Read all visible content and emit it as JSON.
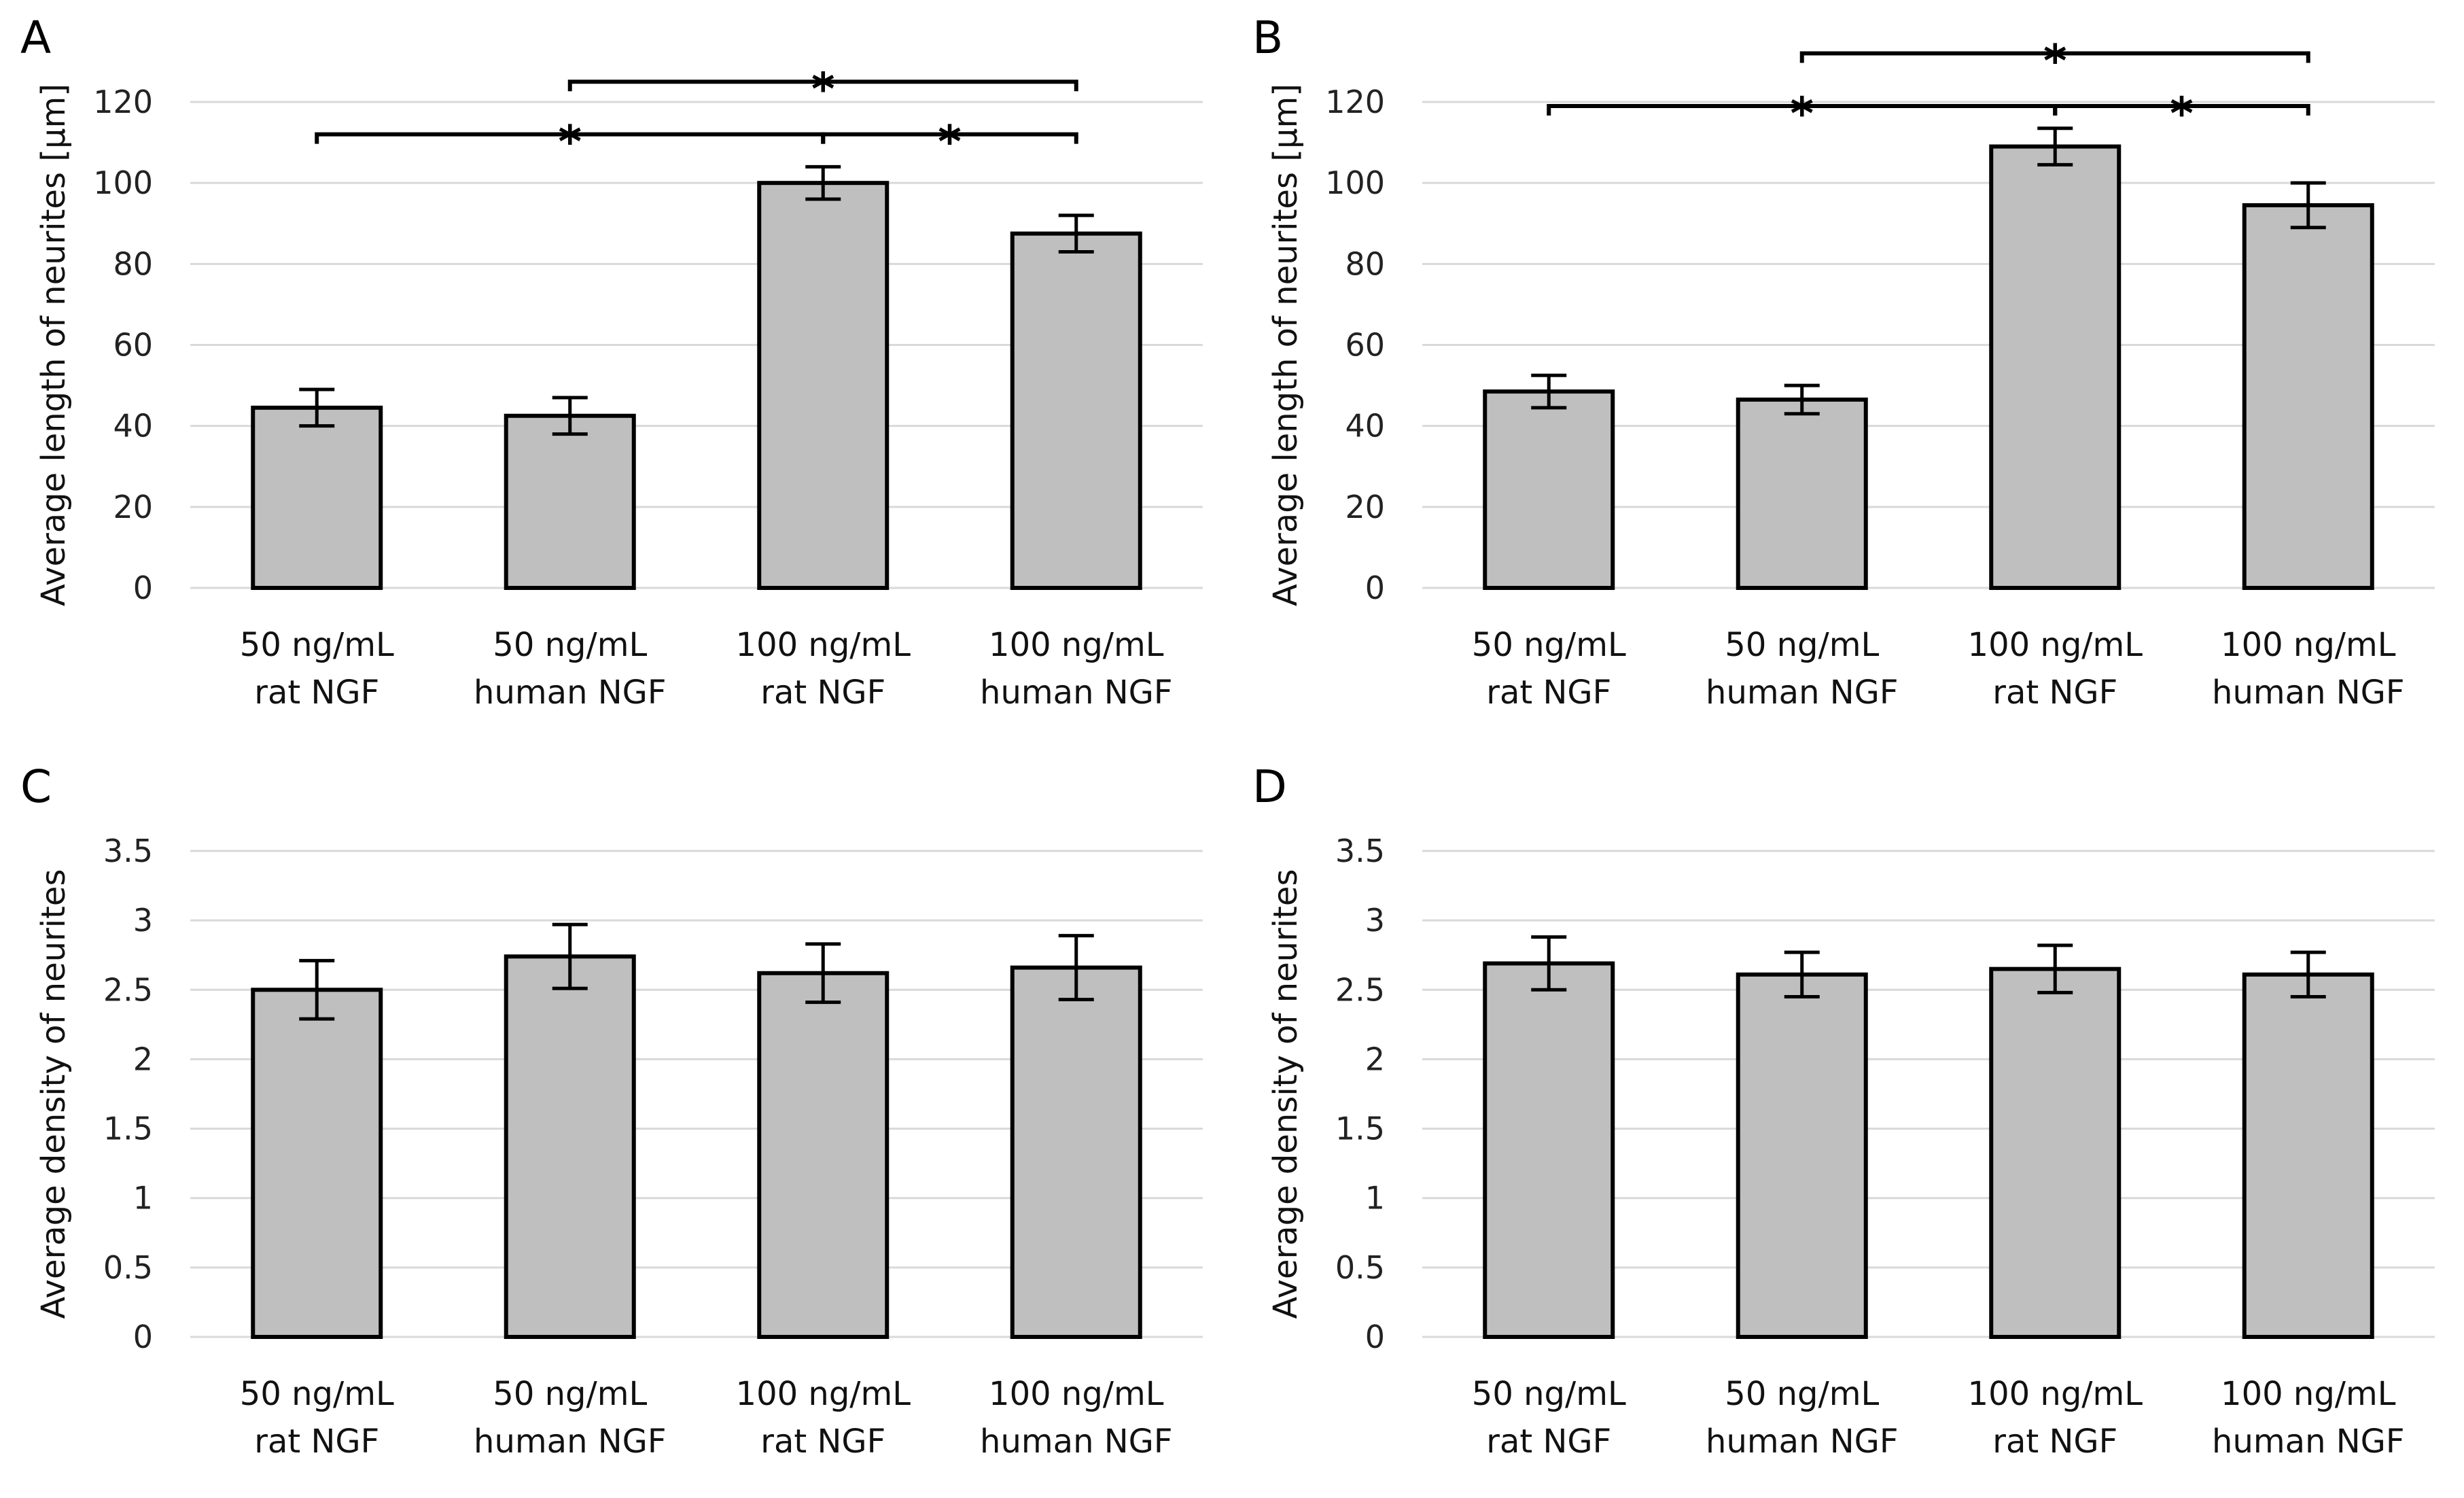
{
  "chart_data": [
    {
      "type": "bar",
      "panel": "A",
      "ylabel": "Average length of neurites [µm]",
      "ylim": [
        0,
        120
      ],
      "yticks": [
        "0",
        "20",
        "40",
        "60",
        "80",
        "100",
        "120"
      ],
      "grid": true,
      "categories": [
        [
          "50 ng/mL",
          "rat NGF"
        ],
        [
          "50 ng/mL",
          "human NGF"
        ],
        [
          "100 ng/mL",
          "rat NGF"
        ],
        [
          "100 ng/mL",
          "human NGF"
        ]
      ],
      "values": [
        44.5,
        42.5,
        100,
        87.5
      ],
      "errors": [
        4.5,
        4.5,
        4,
        4.5
      ],
      "significance": [
        {
          "from": 0,
          "to": 2,
          "level": 112,
          "label": "*"
        },
        {
          "from": 1,
          "to": 3,
          "level": 125,
          "label": "*"
        },
        {
          "from": 2,
          "to": 3,
          "level": 112,
          "label": "*"
        }
      ]
    },
    {
      "type": "bar",
      "panel": "B",
      "ylabel": "Average length of neurites [µm]",
      "ylim": [
        0,
        120
      ],
      "yticks": [
        "0",
        "20",
        "40",
        "60",
        "80",
        "100",
        "120"
      ],
      "grid": true,
      "categories": [
        [
          "50 ng/mL",
          "rat NGF"
        ],
        [
          "50 ng/mL",
          "human NGF"
        ],
        [
          "100 ng/mL",
          "rat NGF"
        ],
        [
          "100 ng/mL",
          "human NGF"
        ]
      ],
      "values": [
        48.5,
        46.5,
        109,
        94.5
      ],
      "errors": [
        4,
        3.5,
        4.5,
        5.5
      ],
      "significance": [
        {
          "from": 0,
          "to": 2,
          "level": 119,
          "label": "*"
        },
        {
          "from": 1,
          "to": 3,
          "level": 132,
          "label": "*"
        },
        {
          "from": 2,
          "to": 3,
          "level": 119,
          "label": "*"
        }
      ]
    },
    {
      "type": "bar",
      "panel": "C",
      "ylabel": "Average density of neurites",
      "ylim": [
        0,
        3.5
      ],
      "yticks": [
        "0",
        "0.5",
        "1",
        "1.5",
        "2",
        "2.5",
        "3",
        "3.5"
      ],
      "grid": true,
      "categories": [
        [
          "50 ng/mL",
          "rat NGF"
        ],
        [
          "50 ng/mL",
          "human NGF"
        ],
        [
          "100 ng/mL",
          "rat NGF"
        ],
        [
          "100 ng/mL",
          "human NGF"
        ]
      ],
      "values": [
        2.5,
        2.74,
        2.62,
        2.66
      ],
      "errors": [
        0.21,
        0.23,
        0.21,
        0.23
      ],
      "significance": []
    },
    {
      "type": "bar",
      "panel": "D",
      "ylabel": "Average density of neurites",
      "ylim": [
        0,
        3.5
      ],
      "yticks": [
        "0",
        "0.5",
        "1",
        "1.5",
        "2",
        "2.5",
        "3",
        "3.5"
      ],
      "grid": true,
      "categories": [
        [
          "50 ng/mL",
          "rat NGF"
        ],
        [
          "50 ng/mL",
          "human NGF"
        ],
        [
          "100 ng/mL",
          "rat NGF"
        ],
        [
          "100 ng/mL",
          "human NGF"
        ]
      ],
      "values": [
        2.69,
        2.61,
        2.65,
        2.61
      ],
      "errors": [
        0.19,
        0.16,
        0.17,
        0.16
      ],
      "significance": []
    }
  ]
}
